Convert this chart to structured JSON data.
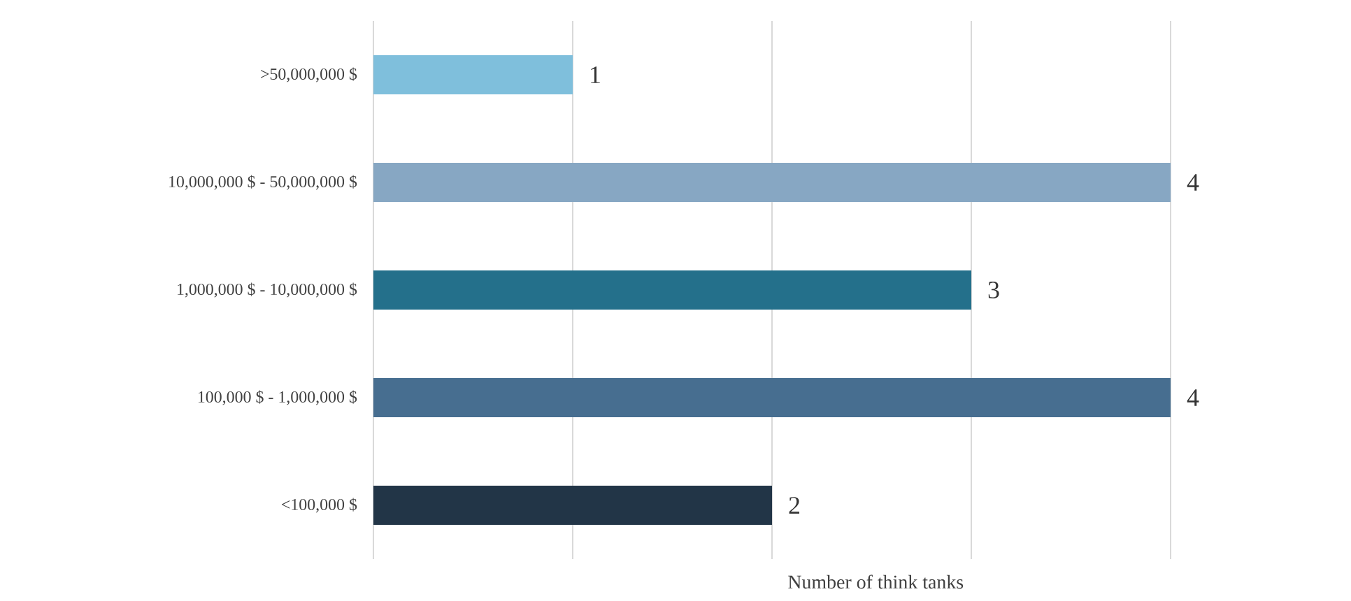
{
  "chart_data": {
    "type": "bar",
    "orientation": "horizontal",
    "xlabel": "Number of think tanks",
    "categories": [
      ">50,000,000 $",
      "10,000,000 $ - 50,000,000 $",
      "1,000,000 $ - 10,000,000 $",
      "100,000 $ - 1,000,000 $",
      "<100,000 $"
    ],
    "values": [
      1,
      4,
      3,
      4,
      2
    ],
    "colors": [
      "#7fbfdc",
      "#87a7c3",
      "#24708b",
      "#476e90",
      "#223547"
    ],
    "xlim": [
      0,
      4
    ],
    "xticks": [
      {
        "value": 0,
        "label": null
      },
      {
        "value": 1,
        "label": null
      },
      {
        "value": 2,
        "label": null
      },
      {
        "value": 3,
        "label": null
      },
      {
        "value": 4,
        "label": null
      }
    ],
    "tick_labels": "y",
    "grid": "x",
    "data_labels": true
  }
}
